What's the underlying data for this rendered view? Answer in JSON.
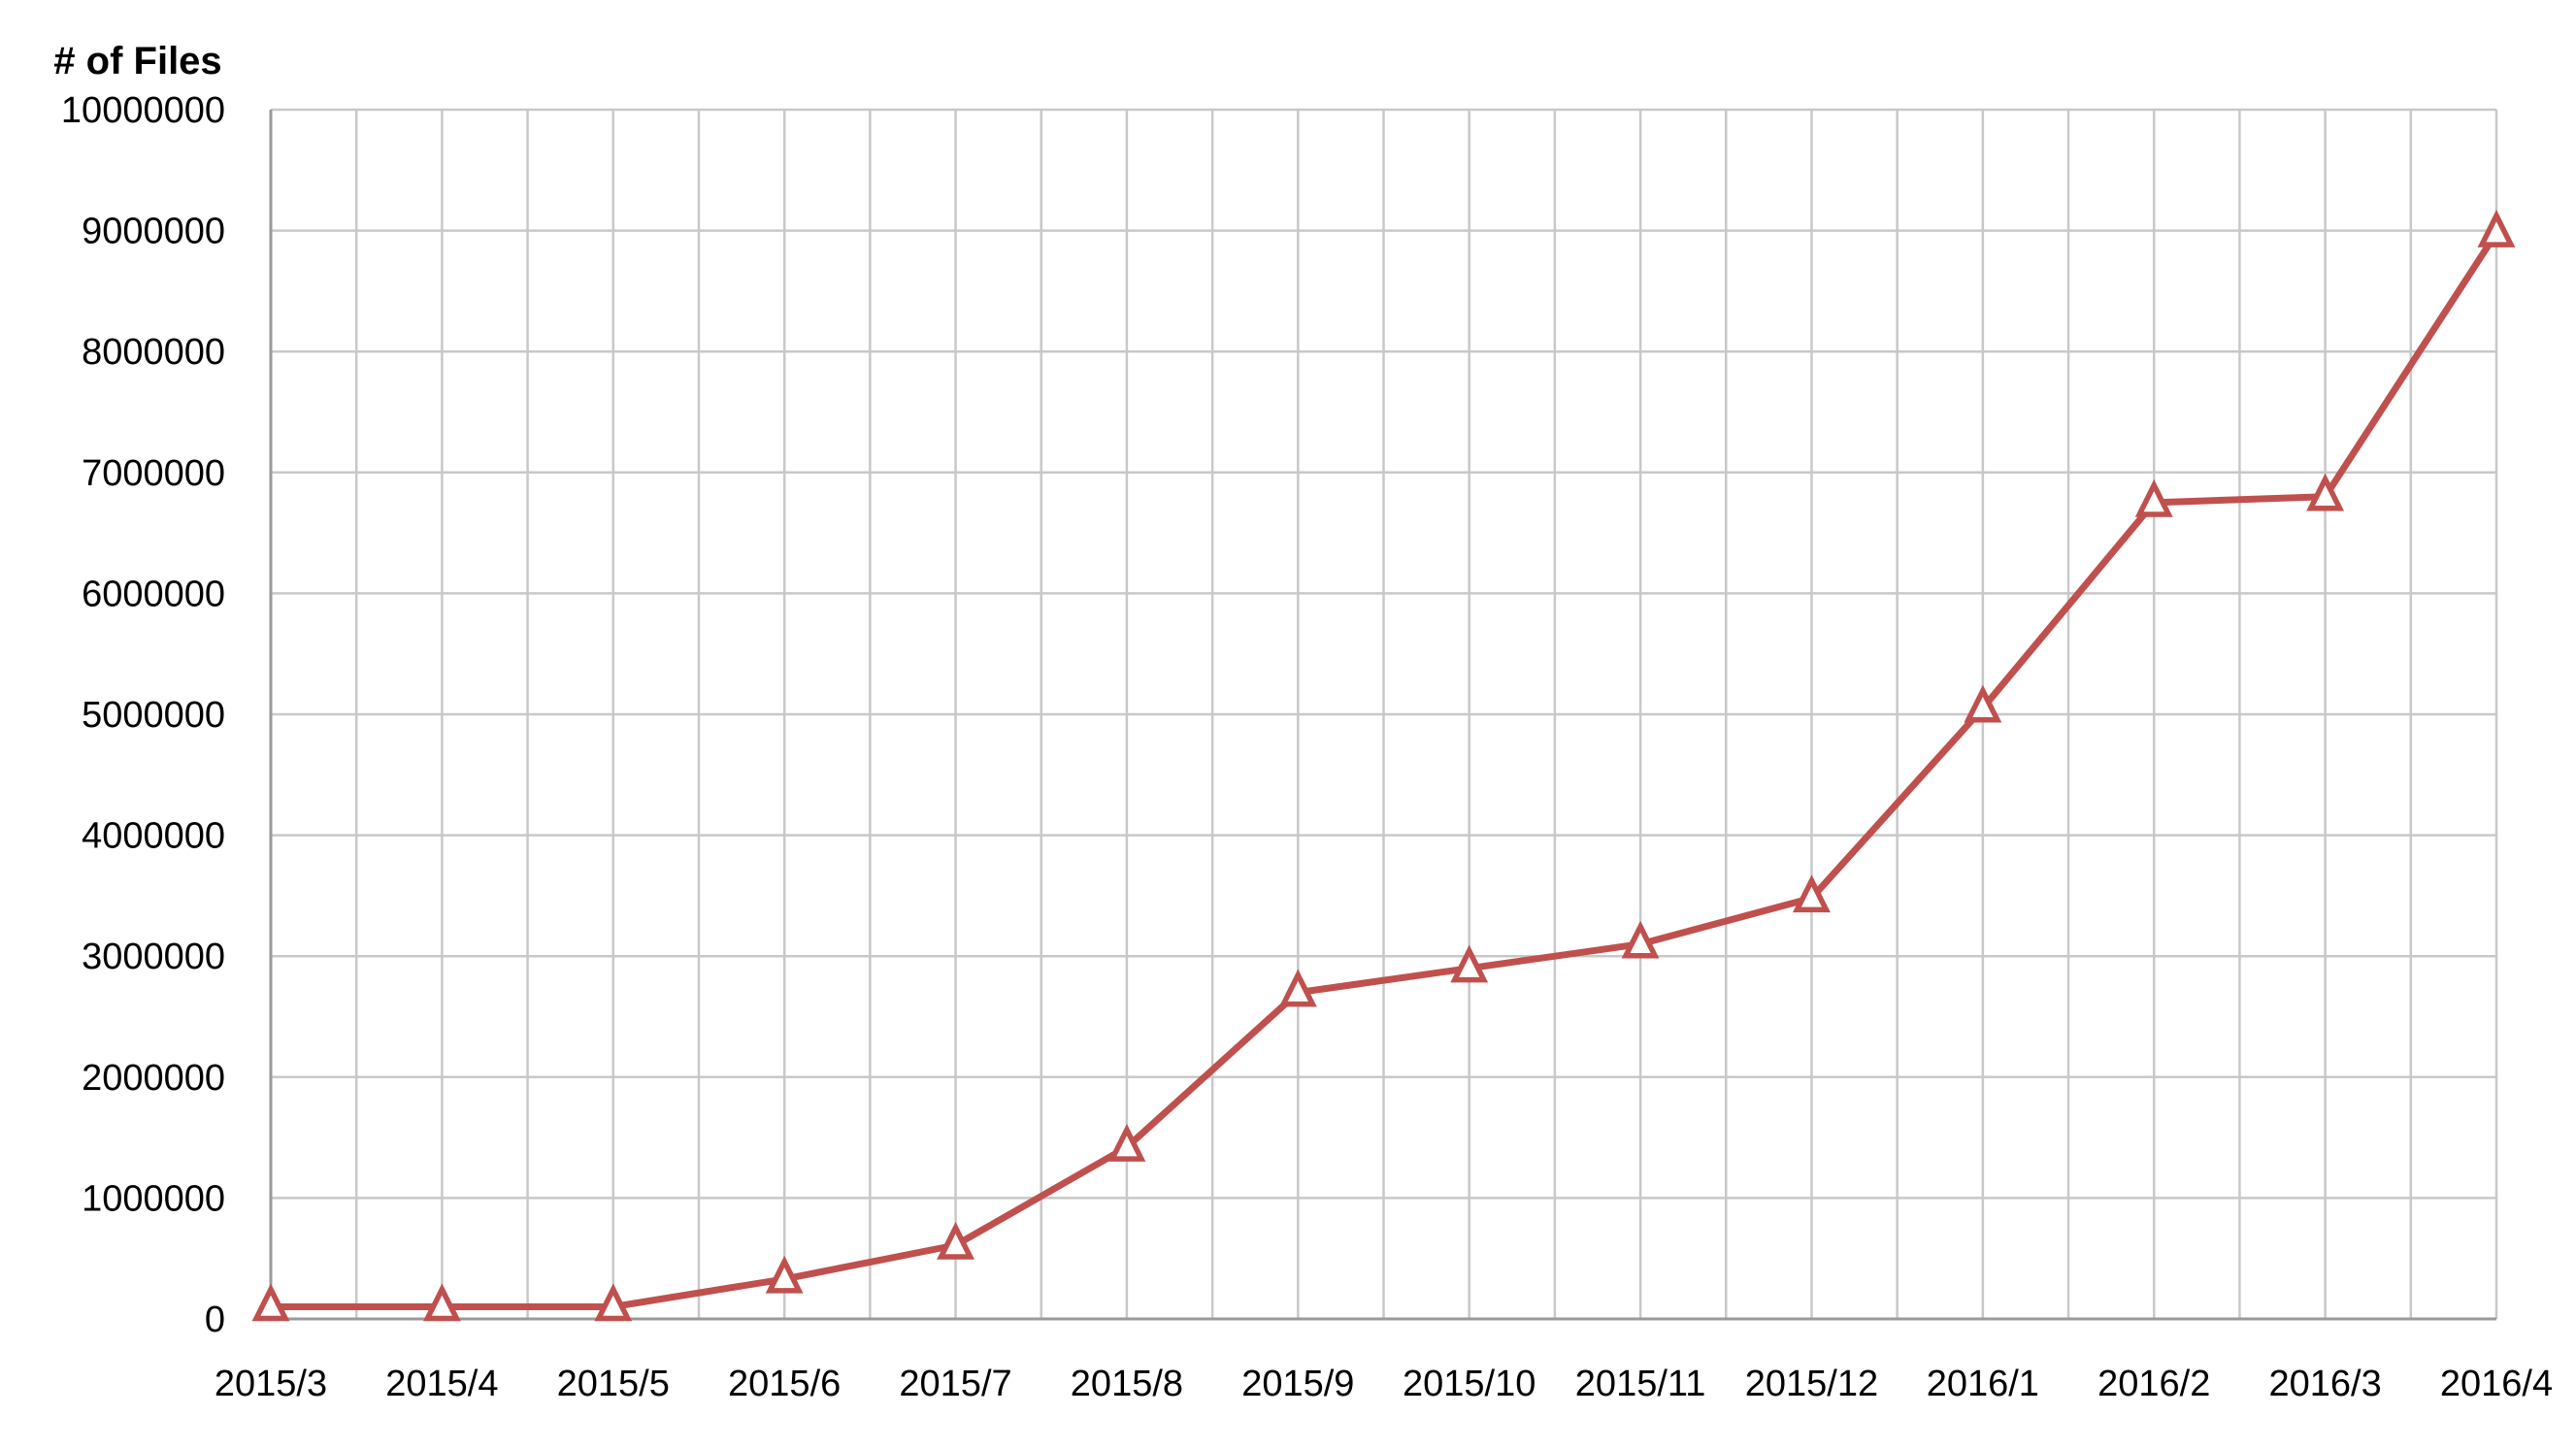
{
  "chart_data": {
    "type": "line",
    "title": "",
    "xlabel": "",
    "ylabel": "# of Files",
    "categories": [
      "2015/3",
      "2015/4",
      "2015/5",
      "2015/6",
      "2015/7",
      "2015/8",
      "2015/9",
      "2015/10",
      "2015/11",
      "2015/12",
      "2016/1",
      "2016/2",
      "2016/3",
      "2016/4"
    ],
    "series": [
      {
        "values": [
          100000,
          100000,
          100000,
          330000,
          610000,
          1420000,
          2700000,
          2900000,
          3100000,
          3480000,
          5050000,
          6750000,
          6800000,
          8980000
        ],
        "color": "#c0504d",
        "marker": "triangle-open"
      }
    ],
    "ylim": [
      0,
      10000000
    ],
    "y_ticks": [
      "0",
      "1000000",
      "2000000",
      "3000000",
      "4000000",
      "5000000",
      "6000000",
      "7000000",
      "8000000",
      "9000000",
      "10000000"
    ],
    "grid": true,
    "legend": "none"
  }
}
